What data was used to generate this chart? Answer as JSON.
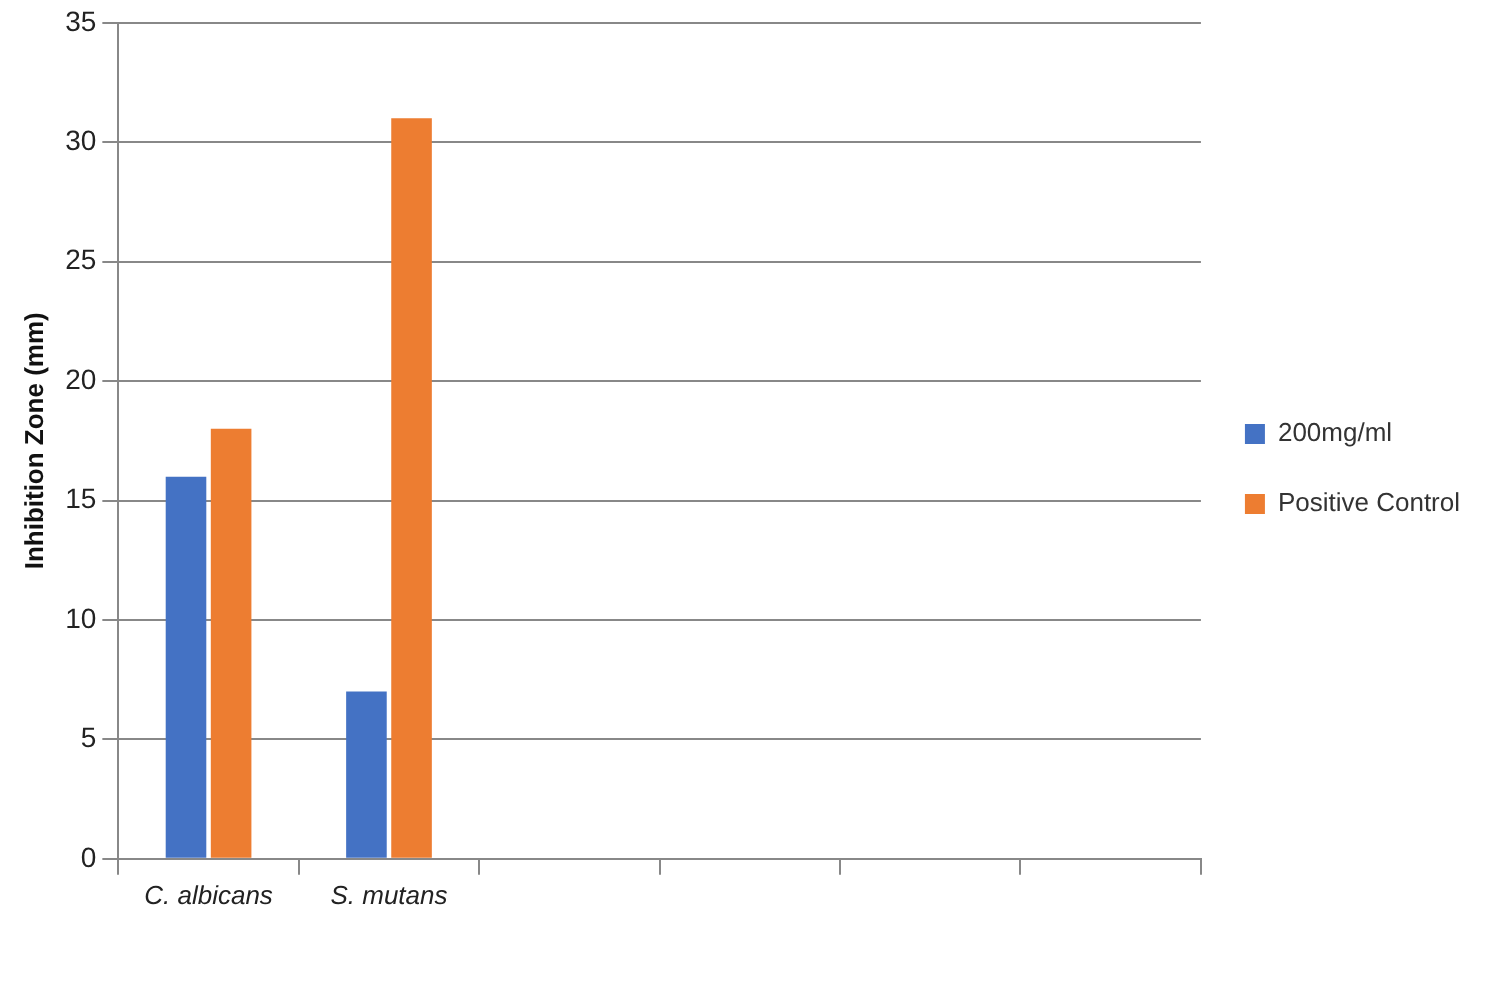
{
  "chart_data": {
    "type": "bar",
    "ylabel": "Inhibition Zone (mm)",
    "categories": [
      "C. albicans",
      "S. mutans",
      null,
      null,
      null,
      null
    ],
    "series": [
      {
        "name": "200mg/ml",
        "color": "#4472c4",
        "values": [
          16,
          7,
          null,
          null,
          null,
          null
        ]
      },
      {
        "name": "Positive Control",
        "color": "#ed7d31",
        "values": [
          18,
          31,
          null,
          null,
          null,
          null
        ]
      }
    ],
    "ylim": [
      0,
      35
    ],
    "yticks": [
      0,
      5,
      10,
      15,
      20,
      25,
      30,
      35
    ],
    "grid": "y",
    "legend": "right"
  }
}
